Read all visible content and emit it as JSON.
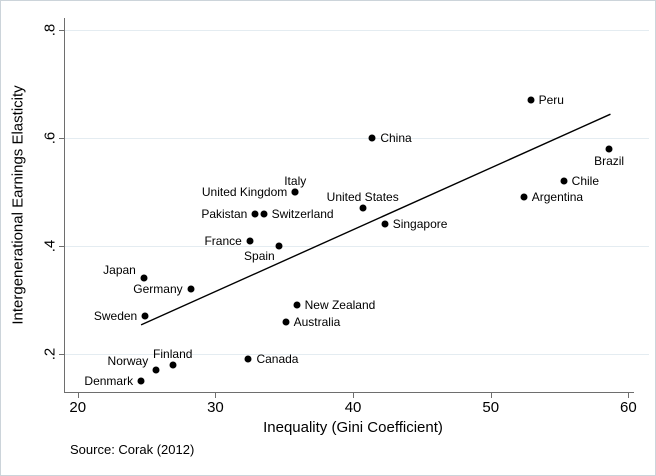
{
  "chart_data": {
    "type": "scatter",
    "title": "",
    "xlabel": "Inequality (Gini Coefficient)",
    "ylabel": "Intergenerational Earnings Elasticity",
    "source_note": "Source: Corak (2012)",
    "x_tick_labels": [
      "20",
      "30",
      "40",
      "50",
      "60"
    ],
    "x_tick_values": [
      20,
      30,
      40,
      50,
      60
    ],
    "y_tick_labels": [
      ".2",
      ".4",
      ".6",
      ".8"
    ],
    "y_tick_values": [
      0.2,
      0.4,
      0.6,
      0.8
    ],
    "xlim": [
      19,
      61.5
    ],
    "ylim": [
      0.128,
      0.822
    ],
    "grid": "horizontal-only",
    "legend_position": "none",
    "marker_color": "#000000",
    "grid_color": "#e4ecf1",
    "axis_color": "#6e6e6e",
    "points": [
      {
        "name": "Denmark",
        "x": 24.6,
        "y": 0.15,
        "label_side": "left"
      },
      {
        "name": "Norway",
        "x": 25.7,
        "y": 0.17,
        "label_side": "left",
        "dy": -9
      },
      {
        "name": "Finland",
        "x": 26.9,
        "y": 0.18,
        "label_side": "above"
      },
      {
        "name": "Canada",
        "x": 32.4,
        "y": 0.19,
        "label_side": "right"
      },
      {
        "name": "Australia",
        "x": 35.1,
        "y": 0.26,
        "label_side": "right"
      },
      {
        "name": "Sweden",
        "x": 24.9,
        "y": 0.27,
        "label_side": "left"
      },
      {
        "name": "New Zealand",
        "x": 35.9,
        "y": 0.29,
        "label_side": "right"
      },
      {
        "name": "Germany",
        "x": 28.2,
        "y": 0.32,
        "label_side": "left"
      },
      {
        "name": "Japan",
        "x": 24.8,
        "y": 0.34,
        "label_side": "left",
        "dy": -8
      },
      {
        "name": "Spain",
        "x": 34.6,
        "y": 0.4,
        "label_side": "below-left"
      },
      {
        "name": "France",
        "x": 32.5,
        "y": 0.41,
        "label_side": "left"
      },
      {
        "name": "Singapore",
        "x": 42.3,
        "y": 0.44,
        "label_side": "right"
      },
      {
        "name": "Pakistan",
        "x": 32.9,
        "y": 0.46,
        "label_side": "left"
      },
      {
        "name": "Switzerland",
        "x": 33.5,
        "y": 0.46,
        "label_side": "right"
      },
      {
        "name": "United States",
        "x": 40.7,
        "y": 0.47,
        "label_side": "above"
      },
      {
        "name": "Argentina",
        "x": 52.4,
        "y": 0.49,
        "label_side": "right"
      },
      {
        "name": "United Kingdom",
        "x": 35.8,
        "y": 0.5,
        "label_side": "left"
      },
      {
        "name": "Italy",
        "x": 35.8,
        "y": 0.5,
        "label_side": "above"
      },
      {
        "name": "Chile",
        "x": 55.3,
        "y": 0.52,
        "label_side": "right"
      },
      {
        "name": "Brazil",
        "x": 58.6,
        "y": 0.58,
        "label_side": "below"
      },
      {
        "name": "China",
        "x": 41.4,
        "y": 0.6,
        "label_side": "right"
      },
      {
        "name": "Peru",
        "x": 52.9,
        "y": 0.67,
        "label_side": "right"
      }
    ],
    "trend_line": {
      "x1": 24.6,
      "y1": 0.254,
      "x2": 58.7,
      "y2": 0.644
    }
  }
}
